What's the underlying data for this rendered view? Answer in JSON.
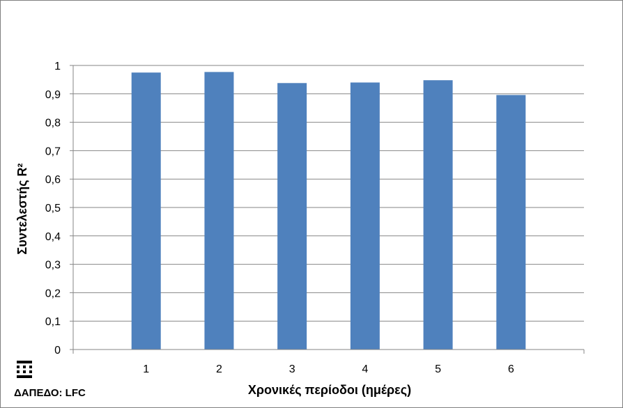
{
  "chart_data": {
    "type": "bar",
    "title": "",
    "xlabel": "Χρονικές περίοδοι (ημέρες)",
    "ylabel": "Συντελεστής  R²",
    "categories": [
      "1",
      "2",
      "3",
      "4",
      "5",
      "6"
    ],
    "values": [
      0.975,
      0.977,
      0.938,
      0.94,
      0.948,
      0.896
    ],
    "ylim": [
      0,
      1
    ],
    "yticks": [
      "0",
      "0,1",
      "0,2",
      "0,3",
      "0,4",
      "0,5",
      "0,6",
      "0,7",
      "0,8",
      "0,9",
      "1"
    ],
    "grid": true,
    "legend": "none",
    "bar_color": "#4f81bd"
  },
  "footer": {
    "label": "ΔΑΠΕΔΟ: LFC",
    "icon": "grid-logo-icon"
  }
}
